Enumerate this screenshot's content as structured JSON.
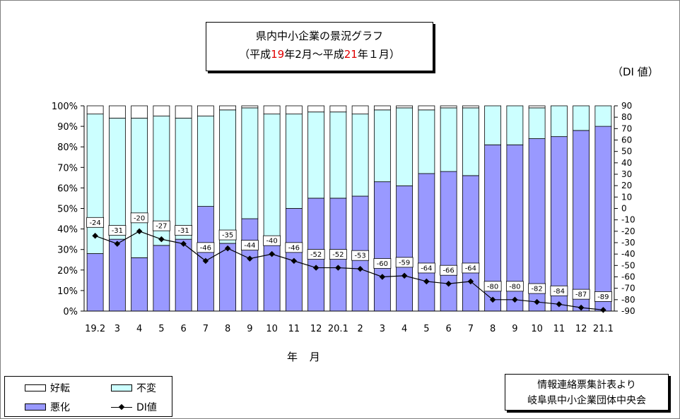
{
  "title": {
    "line1": "県内中小企業の景況グラフ",
    "line2_a": "（平成",
    "line2_b": "19",
    "line2_c": "年2月～平成",
    "line2_d": "21",
    "line2_e": "年１月）"
  },
  "right_axis_unit": "（DI 値）",
  "x_axis_title": "年 月",
  "source": {
    "line1": "情報連絡票集計表より",
    "line2": "岐阜県中小企業団体中央会"
  },
  "legend": {
    "good": "好転",
    "same": "不変",
    "bad": "悪化",
    "di": "DI値"
  },
  "colors": {
    "good": "#ffffff",
    "same": "#ccffff",
    "bad": "#9999ff",
    "di_line": "#000000"
  },
  "chart_data": {
    "type": "bar",
    "stacked": true,
    "categories": [
      "19.2",
      "3",
      "4",
      "5",
      "6",
      "7",
      "8",
      "9",
      "10",
      "11",
      "12",
      "20.1",
      "2",
      "3",
      "4",
      "5",
      "6",
      "7",
      "8",
      "9",
      "10",
      "11",
      "12",
      "21.1"
    ],
    "series": [
      {
        "name": "悪化",
        "values": [
          28,
          35,
          26,
          32,
          35,
          51,
          33,
          45,
          36,
          50,
          55,
          55,
          56,
          63,
          61,
          67,
          68,
          66,
          81,
          81,
          84,
          85,
          88,
          90
        ]
      },
      {
        "name": "不変",
        "values": [
          68,
          59,
          68,
          63,
          59,
          44,
          65,
          54,
          60,
          46,
          42,
          42,
          40,
          35,
          38,
          31,
          31,
          33,
          19,
          19,
          15,
          15,
          12,
          10
        ]
      },
      {
        "name": "好転",
        "values": [
          4,
          6,
          6,
          5,
          6,
          5,
          2,
          1,
          4,
          4,
          3,
          3,
          4,
          2,
          1,
          2,
          1,
          1,
          0,
          0,
          1,
          0,
          0,
          0
        ]
      },
      {
        "name": "DI値",
        "axis": "right",
        "type": "line",
        "values": [
          -24,
          -31,
          -20,
          -27,
          -31,
          -46,
          -35,
          -44,
          -40,
          -46,
          -52,
          -52,
          -53,
          -60,
          -59,
          -64,
          -66,
          -64,
          -80,
          -80,
          -82,
          -84,
          -87,
          -89
        ]
      }
    ],
    "left_axis": {
      "ylim": [
        0,
        100
      ],
      "ticks": [
        "0%",
        "10%",
        "20%",
        "30%",
        "40%",
        "50%",
        "60%",
        "70%",
        "80%",
        "90%",
        "100%"
      ]
    },
    "right_axis": {
      "ylim": [
        -90,
        90
      ],
      "ticks": [
        "-90",
        "-80",
        "-70",
        "-60",
        "-50",
        "-40",
        "-30",
        "-20",
        "-10",
        "0",
        "10",
        "20",
        "30",
        "40",
        "50",
        "60",
        "70",
        "80",
        "90"
      ]
    },
    "grid": false
  }
}
